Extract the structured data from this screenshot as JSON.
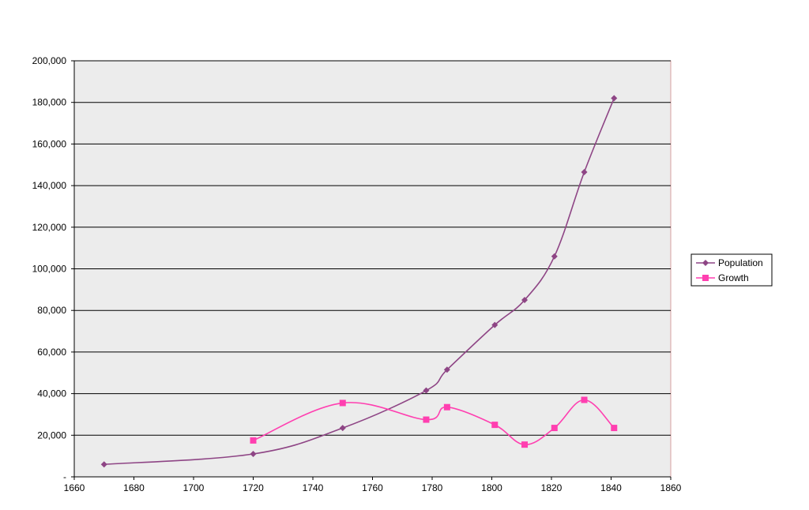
{
  "chart_data": {
    "type": "line",
    "title": "",
    "xlabel": "",
    "ylabel": "",
    "xlim": [
      1660,
      1860
    ],
    "ylim": [
      0,
      200000
    ],
    "x_ticks": [
      "1660",
      "1680",
      "1700",
      "1720",
      "1740",
      "1760",
      "1780",
      "1800",
      "1820",
      "1840",
      "1860"
    ],
    "y_ticks": [
      "-",
      "20,000",
      "40,000",
      "60,000",
      "80,000",
      "100,000",
      "120,000",
      "140,000",
      "160,000",
      "180,000",
      "200,000"
    ],
    "grid": true,
    "legend": "right",
    "series": [
      {
        "name": "Population",
        "color": "#8e4585",
        "marker": "diamond",
        "x": [
          1670,
          1720,
          1750,
          1778,
          1785,
          1801,
          1811,
          1821,
          1831,
          1841
        ],
        "y": [
          6000,
          11000,
          23500,
          41500,
          51500,
          73000,
          85000,
          106000,
          146500,
          182000
        ]
      },
      {
        "name": "Growth",
        "color": "#ff3fb0",
        "marker": "square",
        "x": [
          1720,
          1750,
          1778,
          1785,
          1801,
          1811,
          1821,
          1831,
          1841
        ],
        "y": [
          17500,
          35500,
          27500,
          33500,
          25000,
          15500,
          23500,
          37000,
          23500
        ]
      }
    ]
  }
}
